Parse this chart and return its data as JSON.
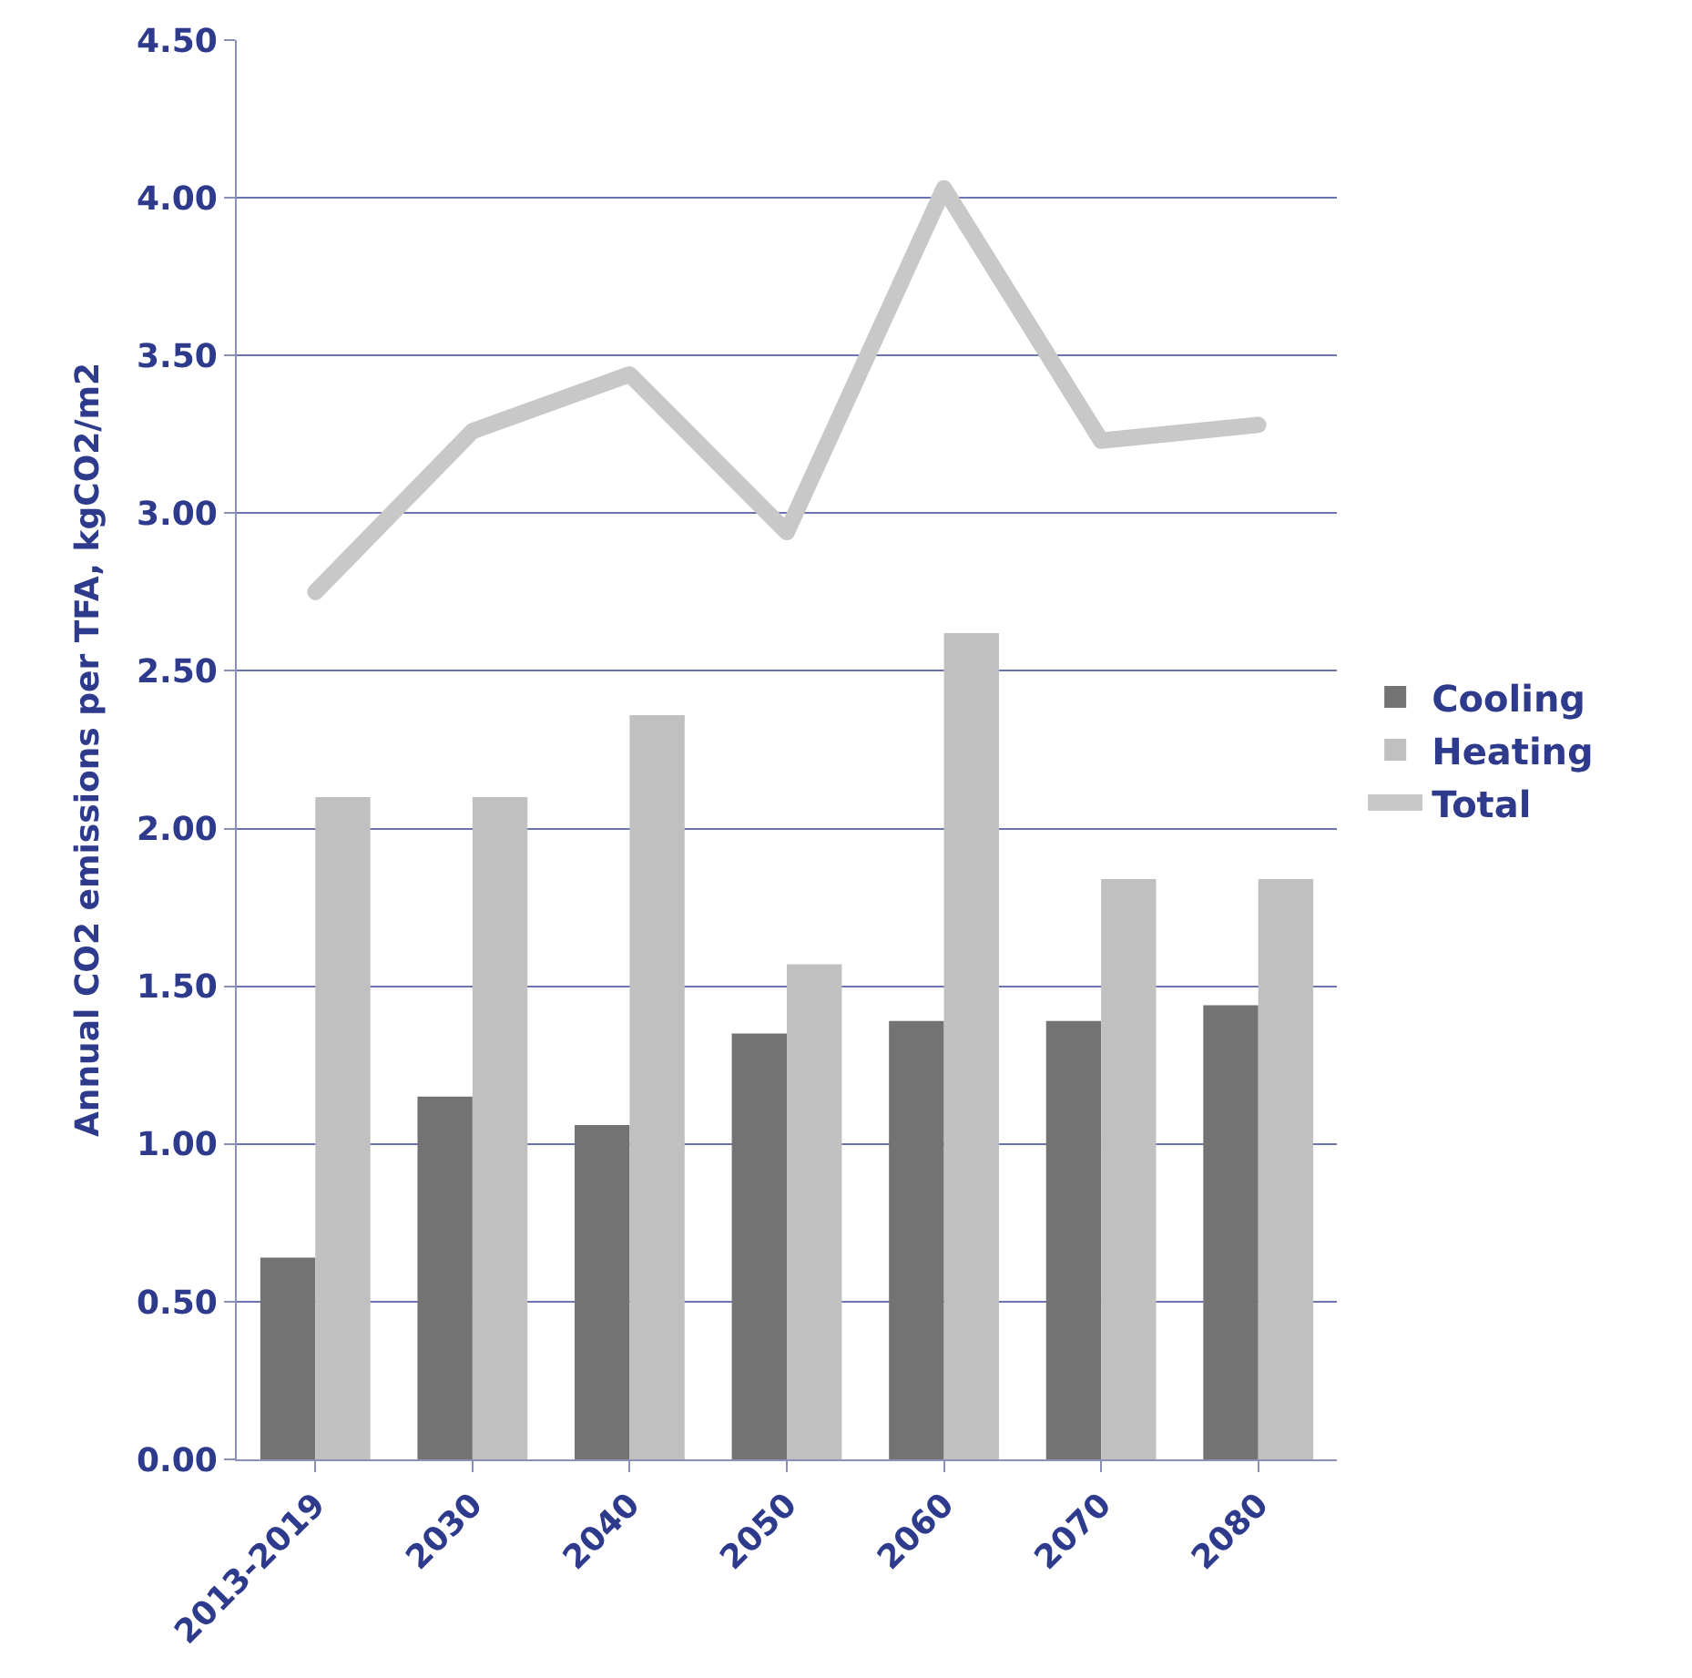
{
  "chart_data": {
    "type": "bar",
    "ylabel": "Annual CO2 emissions per TFA, kgCO2/m2",
    "categories": [
      "2013-2019",
      "2030",
      "2040",
      "2050",
      "2060",
      "2070",
      "2080"
    ],
    "series": [
      {
        "name": "Cooling",
        "color": "#737373",
        "values": [
          0.64,
          1.15,
          1.06,
          1.35,
          1.39,
          1.39,
          1.44
        ]
      },
      {
        "name": "Heating",
        "color": "#c0c0c0",
        "values": [
          2.1,
          2.1,
          2.36,
          1.57,
          2.62,
          1.84,
          1.84
        ]
      },
      {
        "name": "Total",
        "type": "line",
        "color": "#c8c8c8",
        "values": [
          2.75,
          3.26,
          3.44,
          2.94,
          4.03,
          3.23,
          3.28
        ]
      }
    ],
    "ylim": [
      0,
      4.5
    ],
    "yticks": [
      {
        "value": 0,
        "label": "0.00"
      },
      {
        "value": 0.5,
        "label": "0.50"
      },
      {
        "value": 1,
        "label": "1.00"
      },
      {
        "value": 1.5,
        "label": "1.50"
      },
      {
        "value": 2,
        "label": "2.00"
      },
      {
        "value": 2.5,
        "label": "2.50"
      },
      {
        "value": 3,
        "label": "3.00"
      },
      {
        "value": 3.5,
        "label": "3.50"
      },
      {
        "value": 4,
        "label": "4.00"
      },
      {
        "value": 4.5,
        "label": "4.50"
      }
    ],
    "grid": "y",
    "legend": "right"
  }
}
